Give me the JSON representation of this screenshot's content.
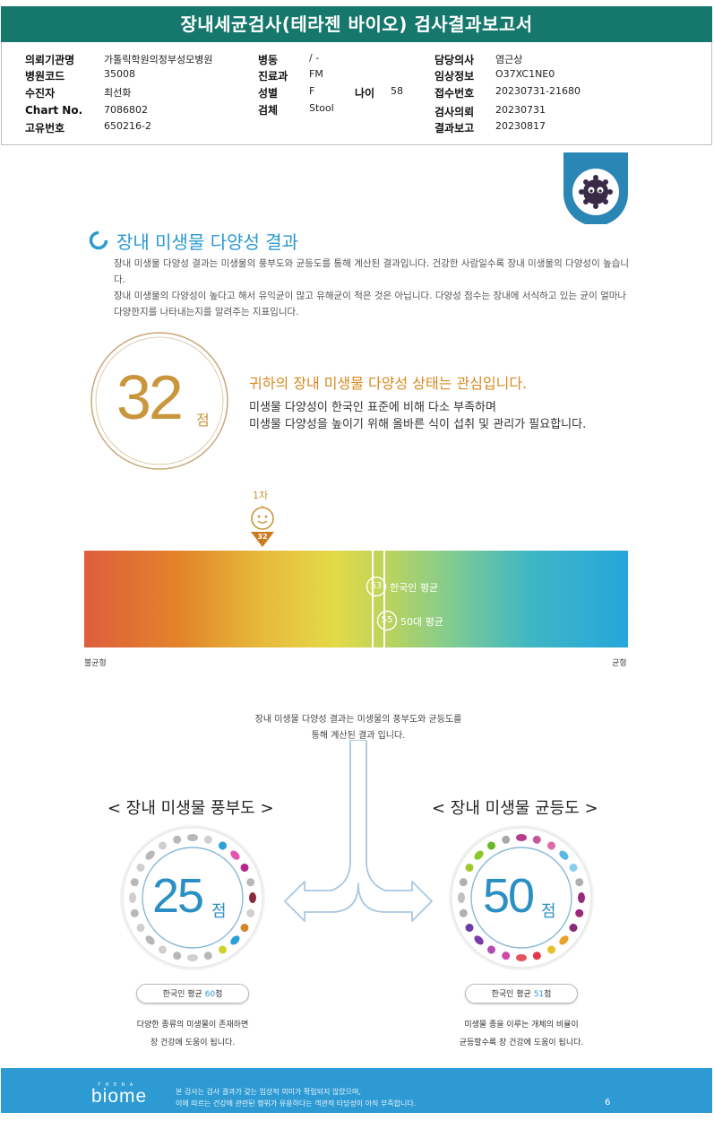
{
  "title": "장내세균검사(테라젠 바이오) 검사결과보고서",
  "info": {
    "col1": [
      {
        "label": "의뢰기관명",
        "value": "가톨릭학원의정부성모병원"
      },
      {
        "label": "병원코드",
        "value": "35008"
      },
      {
        "label": "수진자",
        "value": "최선화"
      },
      {
        "label": "Chart No.",
        "value": "7086802"
      },
      {
        "label": "고유번호",
        "value": "650216-2"
      }
    ],
    "col2": [
      {
        "label": "병동",
        "value": "/ -"
      },
      {
        "label": "진료과",
        "value": "FM"
      },
      {
        "label": "성별",
        "value": "F"
      },
      {
        "label": "검체",
        "value": "Stool"
      }
    ],
    "age": {
      "label": "나이",
      "value": "58"
    },
    "col3": [
      {
        "label": "담당의사",
        "value": "염근상"
      },
      {
        "label": "임상정보",
        "value": "O37XC1NE0"
      },
      {
        "label": "접수번호",
        "value": "20230731-21680"
      },
      {
        "label": "검사의뢰",
        "value": "20230731"
      },
      {
        "label": "결과보고",
        "value": "20230817"
      }
    ]
  },
  "section": {
    "title": "장내 미생물 다양성 결과",
    "desc1": "장내 미생물 다양성 결과는 미생물의 풍부도와 균등도를 통해 계산된 결과입니다. 건강한 사람일수록 장내 미생물의 다양성이 높습니다.",
    "desc2": "장내 미생물의 다양성이 높다고 해서 유익균이 많고 유해균이 적은 것은 아닙니다. 다양성 점수는 장내에 서식하고 있는 균이 얼마나 다양한지를 나타내는지를 알려주는 지표입니다."
  },
  "score": {
    "value": "32",
    "unit": "점"
  },
  "status": {
    "title": "귀하의 장내 미생물 다양성 상태는 관심입니다.",
    "line1": "미생물 다양성이 한국인 표준에 비해 다소 부족하며",
    "line2": "미생물 다양성을 높이기 위해 올바른 식이 섭취 및 관리가 필요합니다."
  },
  "bar": {
    "marker_label": "1차",
    "marker_value": 32,
    "avg_korean": {
      "value": "53",
      "label": "한국인 평균"
    },
    "avg_50s": {
      "value": "55",
      "label": "50대 평균"
    },
    "left_label": "불균형",
    "right_label": "균형",
    "scale_min": 0,
    "scale_max": 100
  },
  "explain": {
    "line1": "장내 미생물 다양성 결과는 미생물의 풍부도와 균등도를",
    "line2": "통해 계산된 결과 입니다."
  },
  "richness": {
    "title": "< 장내 미생물 풍부도 >",
    "score": "25",
    "unit": "점",
    "avg_prefix": "한국인 평균 ",
    "avg_value": "60",
    "avg_suffix": "점",
    "desc1": "다양한 종류의 미생물이 존재하면",
    "desc2": "장 건강에 도움이 됩니다."
  },
  "evenness": {
    "title": "< 장내 미생물 균등도 >",
    "score": "50",
    "unit": "점",
    "avg_prefix": "한국인 평균 ",
    "avg_value": "51",
    "avg_suffix": "점",
    "desc1": "미생물 종을 이루는 개체의 비율이",
    "desc2": "균등할수록 장 건강에 도움이 됩니다."
  },
  "footer": {
    "brand_small": "T H E R A",
    "brand": "biome",
    "line1": "본 검사는 검사 결과가 갖는 임상적 의미가 확립되지 않았으며,",
    "line2": "이에 따르는 건강에 관련된 행위가 유용하다는 객관적 타당성이 아직 부족합니다.",
    "page": "6"
  },
  "colors": {
    "teal": "#16786c",
    "blue": "#2a9ad0",
    "gold": "#c9963b",
    "orange": "#d68a1f"
  }
}
